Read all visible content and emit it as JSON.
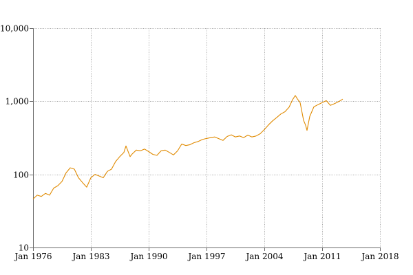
{
  "chart_data": {
    "type": "line",
    "title": "",
    "xlabel": "",
    "ylabel": "",
    "y_scale": "log",
    "xlim": [
      "1976-01",
      "2018-01"
    ],
    "ylim": [
      10,
      10000
    ],
    "grid": true,
    "legend": "none",
    "x_ticks": [
      {
        "value": "1976-01",
        "label": "Jan 1976"
      },
      {
        "value": "1983-01",
        "label": "Jan 1983"
      },
      {
        "value": "1990-01",
        "label": "Jan 1990"
      },
      {
        "value": "1997-01",
        "label": "Jan 1997"
      },
      {
        "value": "2004-01",
        "label": "Jan 2004"
      },
      {
        "value": "2011-01",
        "label": "Jan 2011"
      },
      {
        "value": "2018-01",
        "label": "Jan 2018"
      }
    ],
    "y_ticks": [
      {
        "value": 10,
        "label": "10"
      },
      {
        "value": 100,
        "label": "100"
      },
      {
        "value": 1000,
        "label": "1,000"
      },
      {
        "value": 10000,
        "label": "10,000"
      }
    ],
    "series": [
      {
        "color": "#e08a00",
        "points": [
          [
            "1976-01",
            46
          ],
          [
            "1976-07",
            52
          ],
          [
            "1977-01",
            50
          ],
          [
            "1977-07",
            55
          ],
          [
            "1978-01",
            52
          ],
          [
            "1978-07",
            65
          ],
          [
            "1979-01",
            70
          ],
          [
            "1979-07",
            80
          ],
          [
            "1980-01",
            105
          ],
          [
            "1980-07",
            123
          ],
          [
            "1981-01",
            118
          ],
          [
            "1981-07",
            90
          ],
          [
            "1982-01",
            77
          ],
          [
            "1982-07",
            67
          ],
          [
            "1983-01",
            90
          ],
          [
            "1983-07",
            100
          ],
          [
            "1984-01",
            95
          ],
          [
            "1984-07",
            90
          ],
          [
            "1985-01",
            110
          ],
          [
            "1985-07",
            118
          ],
          [
            "1986-01",
            150
          ],
          [
            "1986-07",
            175
          ],
          [
            "1987-01",
            200
          ],
          [
            "1987-04",
            245
          ],
          [
            "1987-10",
            175
          ],
          [
            "1988-01",
            190
          ],
          [
            "1988-07",
            215
          ],
          [
            "1989-01",
            210
          ],
          [
            "1989-07",
            222
          ],
          [
            "1990-01",
            205
          ],
          [
            "1990-07",
            188
          ],
          [
            "1991-01",
            182
          ],
          [
            "1991-07",
            210
          ],
          [
            "1992-01",
            215
          ],
          [
            "1992-07",
            200
          ],
          [
            "1993-01",
            185
          ],
          [
            "1993-07",
            210
          ],
          [
            "1994-01",
            260
          ],
          [
            "1994-07",
            248
          ],
          [
            "1995-01",
            255
          ],
          [
            "1995-07",
            272
          ],
          [
            "1996-01",
            282
          ],
          [
            "1996-07",
            300
          ],
          [
            "1997-01",
            310
          ],
          [
            "1997-07",
            318
          ],
          [
            "1998-01",
            325
          ],
          [
            "1998-07",
            308
          ],
          [
            "1999-01",
            292
          ],
          [
            "1999-07",
            330
          ],
          [
            "2000-01",
            348
          ],
          [
            "2000-07",
            325
          ],
          [
            "2001-01",
            335
          ],
          [
            "2001-07",
            318
          ],
          [
            "2002-01",
            345
          ],
          [
            "2002-07",
            325
          ],
          [
            "2003-01",
            335
          ],
          [
            "2003-07",
            360
          ],
          [
            "2004-01",
            410
          ],
          [
            "2004-07",
            475
          ],
          [
            "2005-01",
            540
          ],
          [
            "2005-07",
            600
          ],
          [
            "2006-01",
            670
          ],
          [
            "2006-07",
            720
          ],
          [
            "2007-01",
            830
          ],
          [
            "2007-06",
            1050
          ],
          [
            "2007-10",
            1200
          ],
          [
            "2008-01",
            1080
          ],
          [
            "2008-05",
            960
          ],
          [
            "2008-10",
            550
          ],
          [
            "2009-01",
            470
          ],
          [
            "2009-03",
            400
          ],
          [
            "2009-07",
            620
          ],
          [
            "2010-01",
            840
          ],
          [
            "2010-07",
            900
          ],
          [
            "2011-01",
            960
          ],
          [
            "2011-07",
            1020
          ],
          [
            "2012-01",
            880
          ],
          [
            "2012-07",
            930
          ],
          [
            "2013-01",
            990
          ],
          [
            "2013-07",
            1070
          ]
        ]
      }
    ]
  }
}
